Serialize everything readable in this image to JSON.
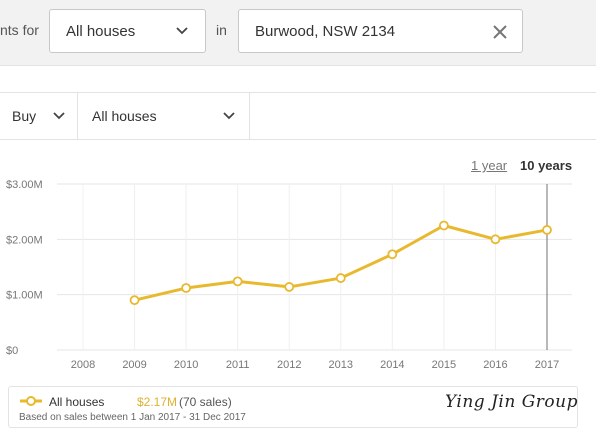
{
  "search": {
    "prefix": "nts for",
    "property_type": "All houses",
    "in_label": "in",
    "location": "Burwood, NSW 2134"
  },
  "filters": {
    "mode": "Buy",
    "property_type": "All houses"
  },
  "range": {
    "one_year": "1 year",
    "ten_years": "10 years",
    "selected": "10 years"
  },
  "chart_data": {
    "type": "line",
    "x": [
      "2008",
      "2009",
      "2010",
      "2011",
      "2012",
      "2013",
      "2014",
      "2015",
      "2016",
      "2017"
    ],
    "y_tick_labels": [
      "$0",
      "$1.00M",
      "$2.00M",
      "$3.00M"
    ],
    "y_ticks": [
      0,
      1.0,
      2.0,
      3.0
    ],
    "ylim": [
      0,
      3.0
    ],
    "series": [
      {
        "name": "All houses",
        "color": "#e8b92e",
        "values": [
          null,
          0.9,
          1.12,
          1.24,
          1.14,
          1.3,
          1.73,
          2.25,
          2.0,
          2.17
        ]
      }
    ],
    "highlight_x": "2017",
    "grid": true
  },
  "legend": {
    "series_name": "All houses",
    "price": "$2.17M",
    "sales": "(70 sales)",
    "note": "Based on sales between 1 Jan 2017 - 31 Dec 2017"
  },
  "watermark": "Ying Jin Group",
  "colors": {
    "accent": "#e8b92e",
    "border": "#c8c8c8",
    "grid": "#e6e6e6"
  }
}
